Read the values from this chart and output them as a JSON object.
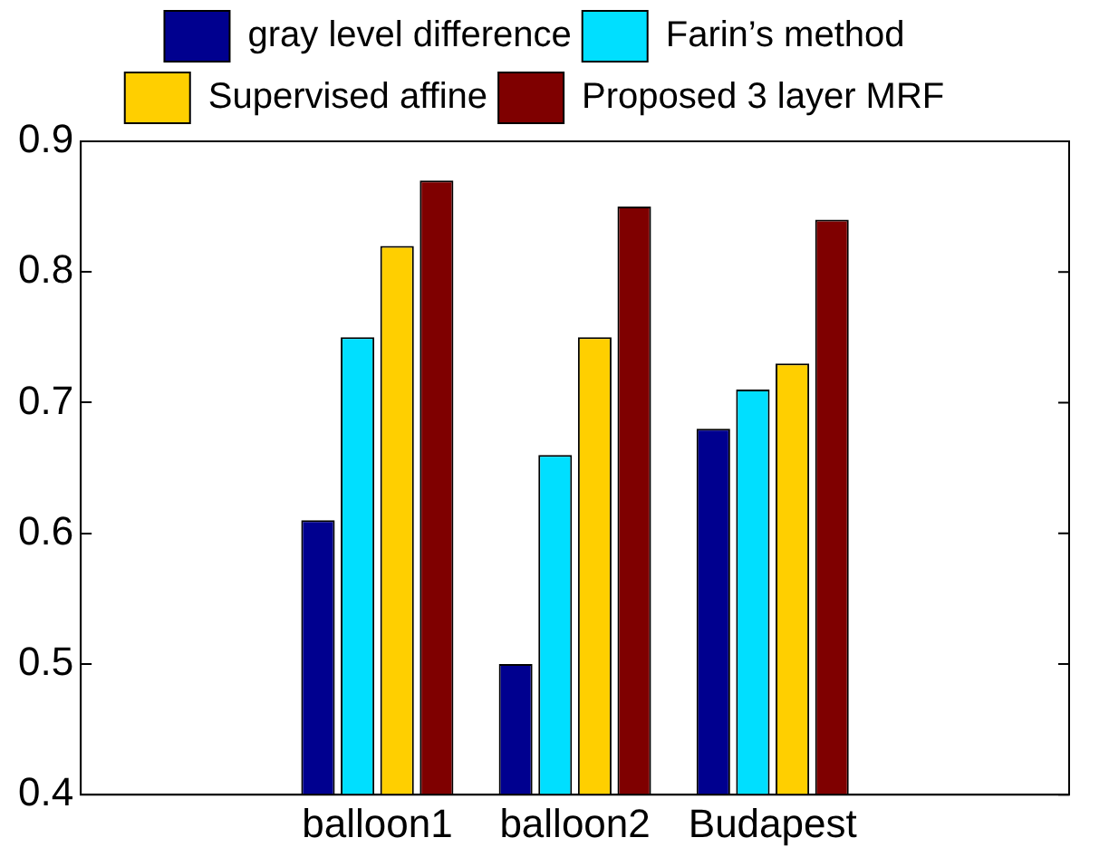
{
  "chart_data": {
    "type": "bar",
    "categories": [
      null,
      "balloon1",
      "balloon2",
      "Budapest",
      null
    ],
    "series": [
      {
        "name": "gray level difference",
        "color": "#00008f",
        "values": [
          null,
          0.61,
          0.5,
          0.68,
          null
        ]
      },
      {
        "name": "Farin’s method",
        "color": "#00dfff",
        "values": [
          null,
          0.75,
          0.66,
          0.71,
          null
        ]
      },
      {
        "name": "Supervised affine",
        "color": "#ffcf00",
        "values": [
          null,
          0.82,
          0.75,
          0.73,
          null
        ]
      },
      {
        "name": "Proposed 3 layer MRF",
        "color": "#7f0000",
        "values": [
          null,
          0.87,
          0.85,
          0.84,
          null
        ]
      }
    ],
    "ylim": [
      0.4,
      0.9
    ],
    "yticks": [
      0.4,
      0.5,
      0.6,
      0.7,
      0.8,
      0.9
    ],
    "grid": false,
    "legend": "top"
  }
}
